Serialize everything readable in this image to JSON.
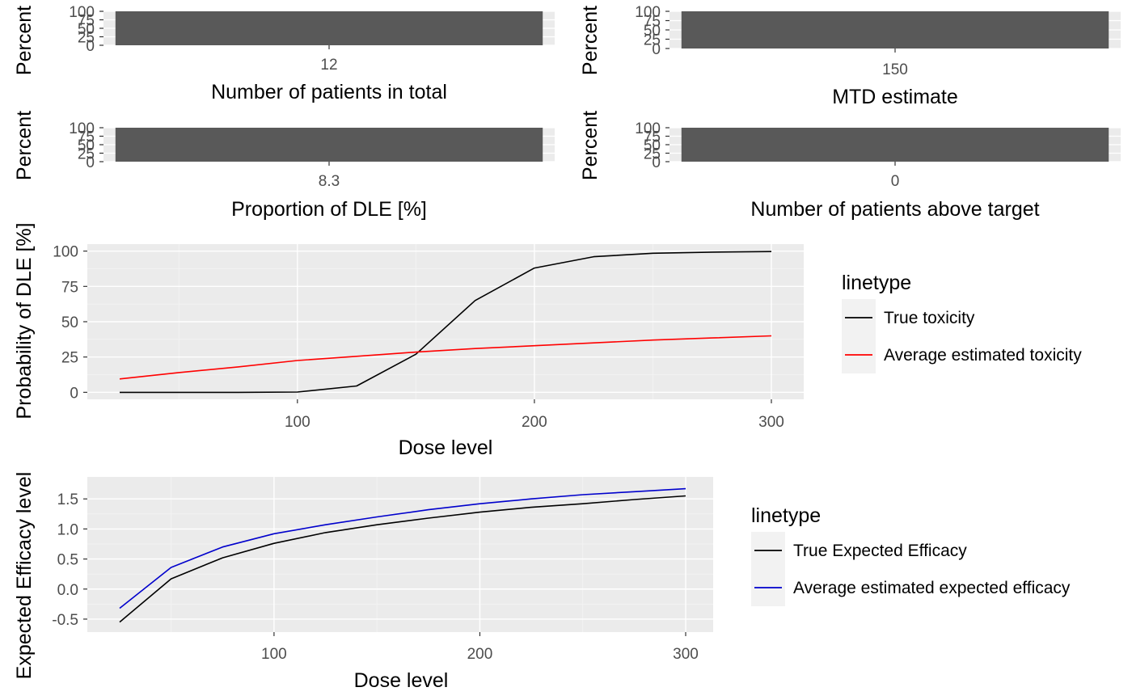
{
  "colors": {
    "panel_bg": "#ebebeb",
    "grid_major": "#ffffff",
    "grid_minor": "#f4f4f4",
    "bar_fill": "#595959",
    "tick_text": "#4d4d4d",
    "legend_key_bg": "#f2f2f2"
  },
  "chart_data": [
    {
      "type": "bar",
      "categories": [
        "12"
      ],
      "values": [
        100
      ],
      "xlabel": "Number of patients in total",
      "ylabel": "Percent",
      "ylim": [
        0,
        100
      ],
      "yticks": [
        "0",
        "25",
        "50",
        "75",
        "100"
      ],
      "grid": true
    },
    {
      "type": "bar",
      "categories": [
        "150"
      ],
      "values": [
        100
      ],
      "xlabel": "MTD estimate",
      "ylabel": "Percent",
      "ylim": [
        0,
        100
      ],
      "yticks": [
        "0",
        "25",
        "50",
        "75",
        "100"
      ],
      "grid": true
    },
    {
      "type": "bar",
      "categories": [
        "8.3"
      ],
      "values": [
        100
      ],
      "xlabel": "Proportion of DLE [%]",
      "ylabel": "Percent",
      "ylim": [
        0,
        100
      ],
      "yticks": [
        "0",
        "25",
        "50",
        "75",
        "100"
      ],
      "grid": true
    },
    {
      "type": "bar",
      "categories": [
        "0"
      ],
      "values": [
        100
      ],
      "xlabel": "Number of patients above target",
      "ylabel": "Percent",
      "ylim": [
        0,
        100
      ],
      "yticks": [
        "0",
        "25",
        "50",
        "75",
        "100"
      ],
      "grid": true
    },
    {
      "type": "line",
      "xlabel": "Dose level",
      "ylabel": "Probability of DLE [%]",
      "xlim": [
        25,
        300
      ],
      "ylim": [
        0,
        100
      ],
      "xticks": [
        100,
        200,
        300
      ],
      "yticks": [
        0,
        25,
        50,
        75,
        100
      ],
      "grid": true,
      "legend": {
        "title": "linetype",
        "position": "right"
      },
      "series": [
        {
          "name": "True toxicity",
          "color": "#000000",
          "x": [
            25,
            50,
            75,
            100,
            125,
            150,
            175,
            200,
            225,
            250,
            275,
            300
          ],
          "y": [
            0,
            0,
            0,
            0.2,
            4.5,
            27,
            65,
            88,
            96,
            98.5,
            99.3,
            99.7
          ]
        },
        {
          "name": "Average estimated toxicity",
          "color": "#ff0000",
          "x": [
            25,
            50,
            75,
            100,
            125,
            150,
            175,
            200,
            225,
            250,
            275,
            300
          ],
          "y": [
            9.5,
            14,
            18,
            22.5,
            25.5,
            28.5,
            31,
            33,
            35,
            37,
            38.5,
            40
          ]
        }
      ]
    },
    {
      "type": "line",
      "xlabel": "Dose level",
      "ylabel": "Expected Efficacy level",
      "xlim": [
        25,
        300
      ],
      "ylim": [
        -0.6,
        1.75
      ],
      "xticks": [
        100,
        200,
        300
      ],
      "yticks": [
        -0.5,
        0.0,
        0.5,
        1.0,
        1.5
      ],
      "ytick_labels": [
        "-0.5",
        "0.0",
        "0.5",
        "1.0",
        "1.5"
      ],
      "grid": true,
      "legend": {
        "title": "linetype",
        "position": "right"
      },
      "series": [
        {
          "name": "True Expected Efficacy",
          "color": "#000000",
          "x": [
            25,
            50,
            75,
            100,
            125,
            150,
            175,
            200,
            225,
            250,
            275,
            300
          ],
          "y": [
            -0.55,
            0.17,
            0.52,
            0.76,
            0.94,
            1.07,
            1.18,
            1.28,
            1.36,
            1.42,
            1.49,
            1.55
          ]
        },
        {
          "name": "Average estimated expected efficacy",
          "color": "#0000cc",
          "x": [
            25,
            50,
            75,
            100,
            125,
            150,
            175,
            200,
            225,
            250,
            275,
            300
          ],
          "y": [
            -0.32,
            0.36,
            0.7,
            0.92,
            1.07,
            1.2,
            1.32,
            1.42,
            1.5,
            1.57,
            1.62,
            1.67
          ]
        }
      ]
    }
  ]
}
